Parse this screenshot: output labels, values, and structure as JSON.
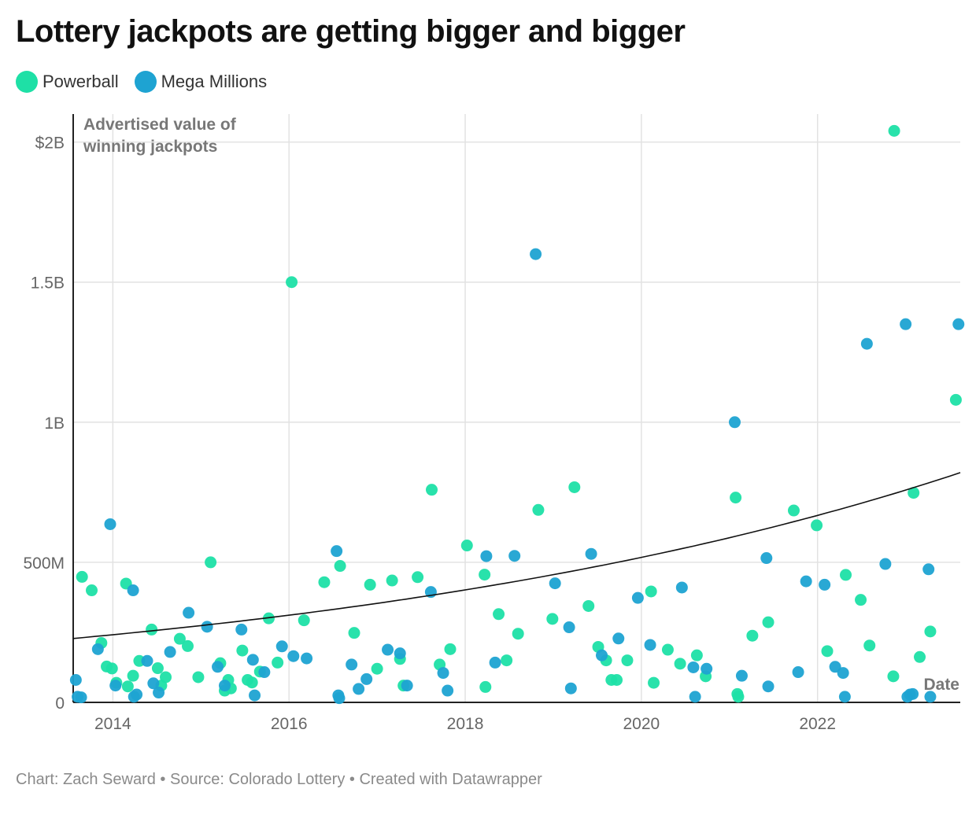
{
  "title": "Lottery jackpots are getting bigger and bigger",
  "legend": [
    {
      "label": "Powerball",
      "color": "#1ee0a6"
    },
    {
      "label": "Mega Millions",
      "color": "#1ea3d2"
    }
  ],
  "footer": {
    "credit": "Chart: Zach Seward",
    "source": "Source: Colorado Lottery",
    "tool": "Created with Datawrapper",
    "separator": " • "
  },
  "chart_data": {
    "type": "scatter",
    "title": "Lottery jackpots are getting bigger and bigger",
    "ylabel": "Advertised value of winning jackpots",
    "ylabel_lines": [
      "Advertised value of",
      "winning jackpots"
    ],
    "xlabel": "Date",
    "xlim": [
      2013.55,
      2023.62
    ],
    "ylim": [
      0,
      2100
    ],
    "x_ticks": [
      2014,
      2016,
      2018,
      2020,
      2022
    ],
    "x_tick_labels": [
      "2014",
      "2016",
      "2018",
      "2020",
      "2022"
    ],
    "y_ticks": [
      0,
      500,
      1000,
      1500,
      2000
    ],
    "y_tick_labels": [
      "0",
      "500M",
      "1B",
      "1.5B",
      "$2B"
    ],
    "value_units": "millions of dollars",
    "grid": true,
    "trendline": {
      "type": "exponential",
      "points": [
        [
          2013.55,
          228
        ],
        [
          2023.62,
          820
        ]
      ]
    },
    "series": [
      {
        "name": "Powerball",
        "color": "#1ee0a6",
        "points": [
          [
            2013.65,
            448
          ],
          [
            2013.76,
            400
          ],
          [
            2013.87,
            212
          ],
          [
            2013.93,
            128
          ],
          [
            2013.99,
            121
          ],
          [
            2014.04,
            70
          ],
          [
            2014.15,
            424
          ],
          [
            2014.17,
            57
          ],
          [
            2014.23,
            95
          ],
          [
            2014.3,
            148
          ],
          [
            2014.44,
            260
          ],
          [
            2014.51,
            122
          ],
          [
            2014.55,
            60
          ],
          [
            2014.6,
            90
          ],
          [
            2014.76,
            227
          ],
          [
            2014.85,
            201
          ],
          [
            2014.97,
            90
          ],
          [
            2015.11,
            500
          ],
          [
            2015.22,
            140
          ],
          [
            2015.27,
            42
          ],
          [
            2015.31,
            80
          ],
          [
            2015.34,
            50
          ],
          [
            2015.47,
            185
          ],
          [
            2015.53,
            80
          ],
          [
            2015.58,
            71
          ],
          [
            2015.67,
            110
          ],
          [
            2015.77,
            300
          ],
          [
            2015.87,
            142
          ],
          [
            2016.03,
            1500
          ],
          [
            2016.17,
            293
          ],
          [
            2016.4,
            429
          ],
          [
            2016.58,
            487
          ],
          [
            2016.74,
            248
          ],
          [
            2016.92,
            420
          ],
          [
            2017.0,
            120
          ],
          [
            2017.17,
            435
          ],
          [
            2017.26,
            155
          ],
          [
            2017.3,
            60
          ],
          [
            2017.46,
            447
          ],
          [
            2017.62,
            759
          ],
          [
            2017.71,
            135
          ],
          [
            2017.83,
            190
          ],
          [
            2018.02,
            560
          ],
          [
            2018.22,
            456
          ],
          [
            2018.23,
            55
          ],
          [
            2018.38,
            315
          ],
          [
            2018.47,
            150
          ],
          [
            2018.6,
            245
          ],
          [
            2018.83,
            687
          ],
          [
            2018.99,
            298
          ],
          [
            2019.24,
            768
          ],
          [
            2019.4,
            344
          ],
          [
            2019.51,
            198
          ],
          [
            2019.6,
            150
          ],
          [
            2019.66,
            80
          ],
          [
            2019.72,
            80
          ],
          [
            2019.84,
            150
          ],
          [
            2020.11,
            396
          ],
          [
            2020.14,
            70
          ],
          [
            2020.3,
            188
          ],
          [
            2020.44,
            138
          ],
          [
            2020.63,
            168
          ],
          [
            2020.73,
            93
          ],
          [
            2021.07,
            731
          ],
          [
            2021.09,
            30
          ],
          [
            2021.1,
            20
          ],
          [
            2021.26,
            238
          ],
          [
            2021.44,
            286
          ],
          [
            2021.73,
            685
          ],
          [
            2021.99,
            632
          ],
          [
            2022.11,
            183
          ],
          [
            2022.32,
            455
          ],
          [
            2022.49,
            366
          ],
          [
            2022.59,
            203
          ],
          [
            2022.86,
            93
          ],
          [
            2022.87,
            2040
          ],
          [
            2023.09,
            748
          ],
          [
            2023.16,
            162
          ],
          [
            2023.28,
            253
          ],
          [
            2023.57,
            1080
          ]
        ]
      },
      {
        "name": "Mega Millions",
        "color": "#1ea3d2",
        "points": [
          [
            2013.58,
            80
          ],
          [
            2013.6,
            20
          ],
          [
            2013.64,
            18
          ],
          [
            2013.83,
            190
          ],
          [
            2013.97,
            636
          ],
          [
            2014.03,
            60
          ],
          [
            2014.23,
            400
          ],
          [
            2014.24,
            20
          ],
          [
            2014.27,
            28
          ],
          [
            2014.39,
            148
          ],
          [
            2014.46,
            68
          ],
          [
            2014.52,
            35
          ],
          [
            2014.65,
            180
          ],
          [
            2014.86,
            320
          ],
          [
            2015.07,
            270
          ],
          [
            2015.19,
            127
          ],
          [
            2015.27,
            60
          ],
          [
            2015.46,
            260
          ],
          [
            2015.59,
            152
          ],
          [
            2015.61,
            25
          ],
          [
            2015.72,
            108
          ],
          [
            2015.92,
            200
          ],
          [
            2016.05,
            165
          ],
          [
            2016.2,
            157
          ],
          [
            2016.54,
            540
          ],
          [
            2016.56,
            25
          ],
          [
            2016.57,
            15
          ],
          [
            2016.71,
            135
          ],
          [
            2016.79,
            48
          ],
          [
            2016.88,
            83
          ],
          [
            2017.12,
            188
          ],
          [
            2017.26,
            175
          ],
          [
            2017.34,
            60
          ],
          [
            2017.61,
            394
          ],
          [
            2017.75,
            105
          ],
          [
            2017.8,
            42
          ],
          [
            2018.24,
            522
          ],
          [
            2018.34,
            142
          ],
          [
            2018.56,
            523
          ],
          [
            2018.8,
            1600
          ],
          [
            2019.02,
            425
          ],
          [
            2019.18,
            268
          ],
          [
            2019.2,
            50
          ],
          [
            2019.43,
            530
          ],
          [
            2019.55,
            168
          ],
          [
            2019.74,
            228
          ],
          [
            2019.96,
            373
          ],
          [
            2020.1,
            205
          ],
          [
            2020.46,
            410
          ],
          [
            2020.59,
            125
          ],
          [
            2020.61,
            20
          ],
          [
            2020.74,
            120
          ],
          [
            2021.06,
            1000
          ],
          [
            2021.14,
            95
          ],
          [
            2021.42,
            515
          ],
          [
            2021.44,
            57
          ],
          [
            2021.87,
            432
          ],
          [
            2021.78,
            108
          ],
          [
            2022.08,
            420
          ],
          [
            2022.2,
            127
          ],
          [
            2022.29,
            105
          ],
          [
            2022.31,
            20
          ],
          [
            2022.56,
            1280
          ],
          [
            2022.77,
            494
          ],
          [
            2023.0,
            1350
          ],
          [
            2023.02,
            20
          ],
          [
            2023.05,
            28
          ],
          [
            2023.08,
            30
          ],
          [
            2023.26,
            475
          ],
          [
            2023.28,
            20
          ],
          [
            2023.6,
            1350
          ]
        ]
      }
    ]
  }
}
